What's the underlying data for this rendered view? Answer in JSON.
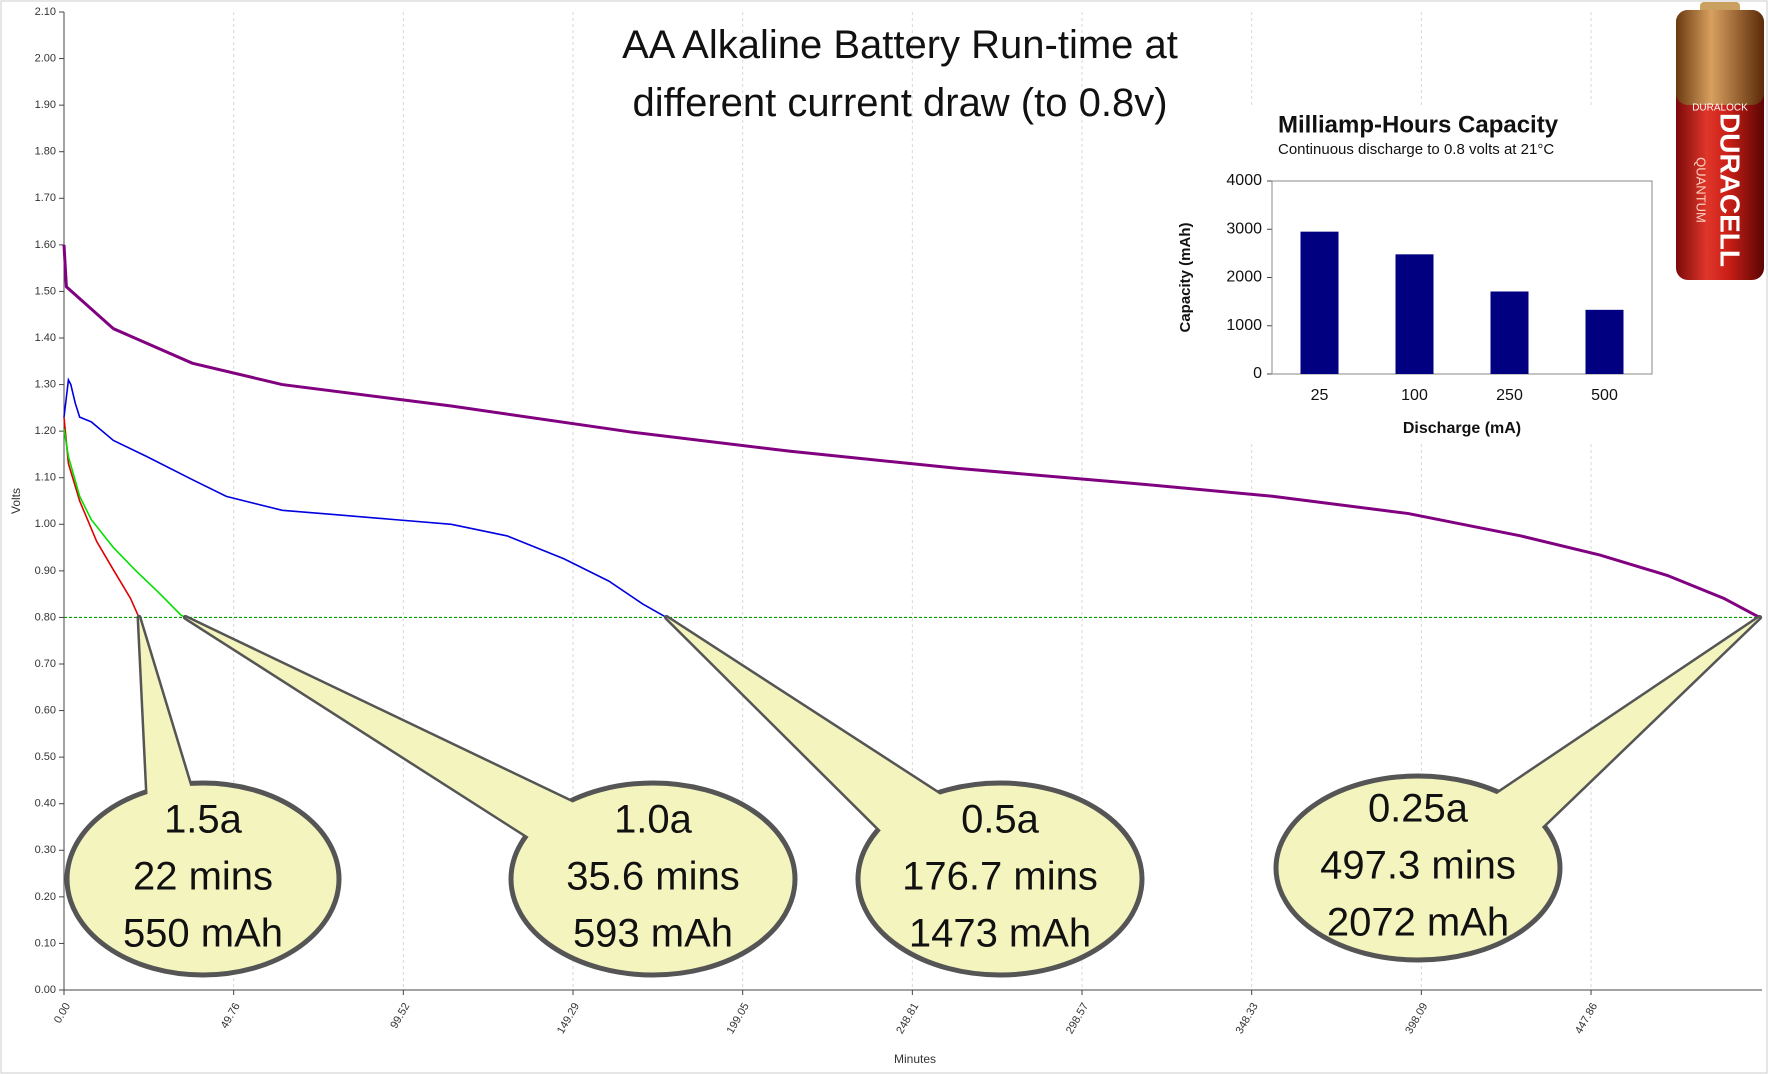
{
  "chart_data": [
    {
      "type": "line",
      "title": "AA Alkaline Battery Run-time at different current draw (to 0.8v)",
      "x_label": "Minutes",
      "y_label": "Volts",
      "xlim": [
        0,
        498
      ],
      "ylim": [
        0,
        2.1
      ],
      "xticks": [
        {
          "value": 0,
          "label": "0.00"
        },
        49.76,
        99.52,
        149.29,
        199.05,
        248.81,
        298.57,
        348.33,
        398.09,
        447.86
      ],
      "yticks": [
        {
          "value": 0,
          "label": "0.00"
        },
        {
          "value": 0.1,
          "label": "0.10"
        },
        {
          "value": 0.2,
          "label": "0.20"
        },
        {
          "value": 0.3,
          "label": "0.30"
        },
        {
          "value": 0.4,
          "label": "0.40"
        },
        {
          "value": 0.5,
          "label": "0.50"
        },
        {
          "value": 0.6,
          "label": "0.60"
        },
        {
          "value": 0.7,
          "label": "0.70"
        },
        {
          "value": 0.8,
          "label": "0.80"
        },
        {
          "value": 0.9,
          "label": "0.90"
        },
        {
          "value": 1.0,
          "label": "1.00"
        },
        {
          "value": 1.1,
          "label": "1.10"
        },
        {
          "value": 1.2,
          "label": "1.20"
        },
        {
          "value": 1.3,
          "label": "1.30"
        },
        {
          "value": 1.4,
          "label": "1.40"
        },
        {
          "value": 1.5,
          "label": "1.50"
        },
        {
          "value": 1.6,
          "label": "1.60"
        },
        {
          "value": 1.7,
          "label": "1.70"
        },
        {
          "value": 1.8,
          "label": "1.80"
        },
        {
          "value": 1.9,
          "label": "1.90"
        },
        {
          "value": 2.0,
          "label": "2.00"
        },
        {
          "value": 2.1,
          "label": "2.10"
        }
      ],
      "grid": "x",
      "reference_line": {
        "value": 0.8,
        "color": "#00a000"
      },
      "series": [
        {
          "color": "#e00000",
          "x": [
            0,
            1.3,
            4.6,
            9.6,
            14.5,
            19.5,
            22
          ],
          "values": [
            1.23,
            1.13,
            1.05,
            0.963,
            0.902,
            0.841,
            0.8
          ],
          "annotation": [
            "1.5a",
            "22 mins",
            "550 mAh"
          ]
        },
        {
          "color": "#00e000",
          "x": [
            0,
            1.3,
            4.6,
            8,
            14.5,
            21.1,
            27.7,
            34.3,
            35.6
          ],
          "values": [
            1.205,
            1.145,
            1.06,
            1.01,
            0.95,
            0.9,
            0.854,
            0.805,
            0.8
          ],
          "annotation": [
            "1.0a",
            "35.6 mins",
            "593 mAh"
          ]
        },
        {
          "color": "#0000e0",
          "x": [
            0,
            1.3,
            2,
            3.3,
            4.6,
            8,
            14.5,
            24.4,
            37.6,
            47.6,
            64,
            80.6,
            97,
            113.6,
            130,
            146.6,
            159.8,
            169.7,
            176.7
          ],
          "values": [
            1.23,
            1.31,
            1.3,
            1.26,
            1.23,
            1.22,
            1.18,
            1.145,
            1.096,
            1.06,
            1.03,
            1.02,
            1.01,
            1.0,
            0.975,
            0.926,
            0.878,
            0.829,
            0.8
          ],
          "annotation": [
            "0.5a",
            "176.7 mins",
            "1473 mAh"
          ]
        },
        {
          "color": "#800080",
          "x": [
            0,
            0.7,
            14.5,
            37.6,
            64,
            113.6,
            166.4,
            212.7,
            262.2,
            311.8,
            354.7,
            394.3,
            427.3,
            450.5,
            470.3,
            486.8,
            497.3
          ],
          "values": [
            1.6,
            1.51,
            1.42,
            1.346,
            1.3,
            1.254,
            1.198,
            1.157,
            1.12,
            1.089,
            1.06,
            1.023,
            0.975,
            0.934,
            0.89,
            0.841,
            0.8
          ],
          "annotation": [
            "0.25a",
            "497.3 mins",
            "2072 mAh"
          ]
        }
      ]
    },
    {
      "type": "bar",
      "title": "Milliamp-Hours Capacity",
      "subtitle": "Continuous discharge to 0.8 volts at 21°C",
      "x_label": "Discharge (mA)",
      "y_label": "Capacity (mAh)",
      "categories": [
        "25",
        "100",
        "250",
        "500"
      ],
      "values": [
        2950,
        2480,
        1710,
        1330
      ],
      "color": "#000080",
      "ylim": [
        0,
        4000
      ],
      "yticks": [
        0,
        1000,
        2000,
        3000,
        4000
      ]
    }
  ],
  "battery": {
    "top": "DURALOCK",
    "brand": "DURACELL",
    "line": "QUANTUM"
  }
}
